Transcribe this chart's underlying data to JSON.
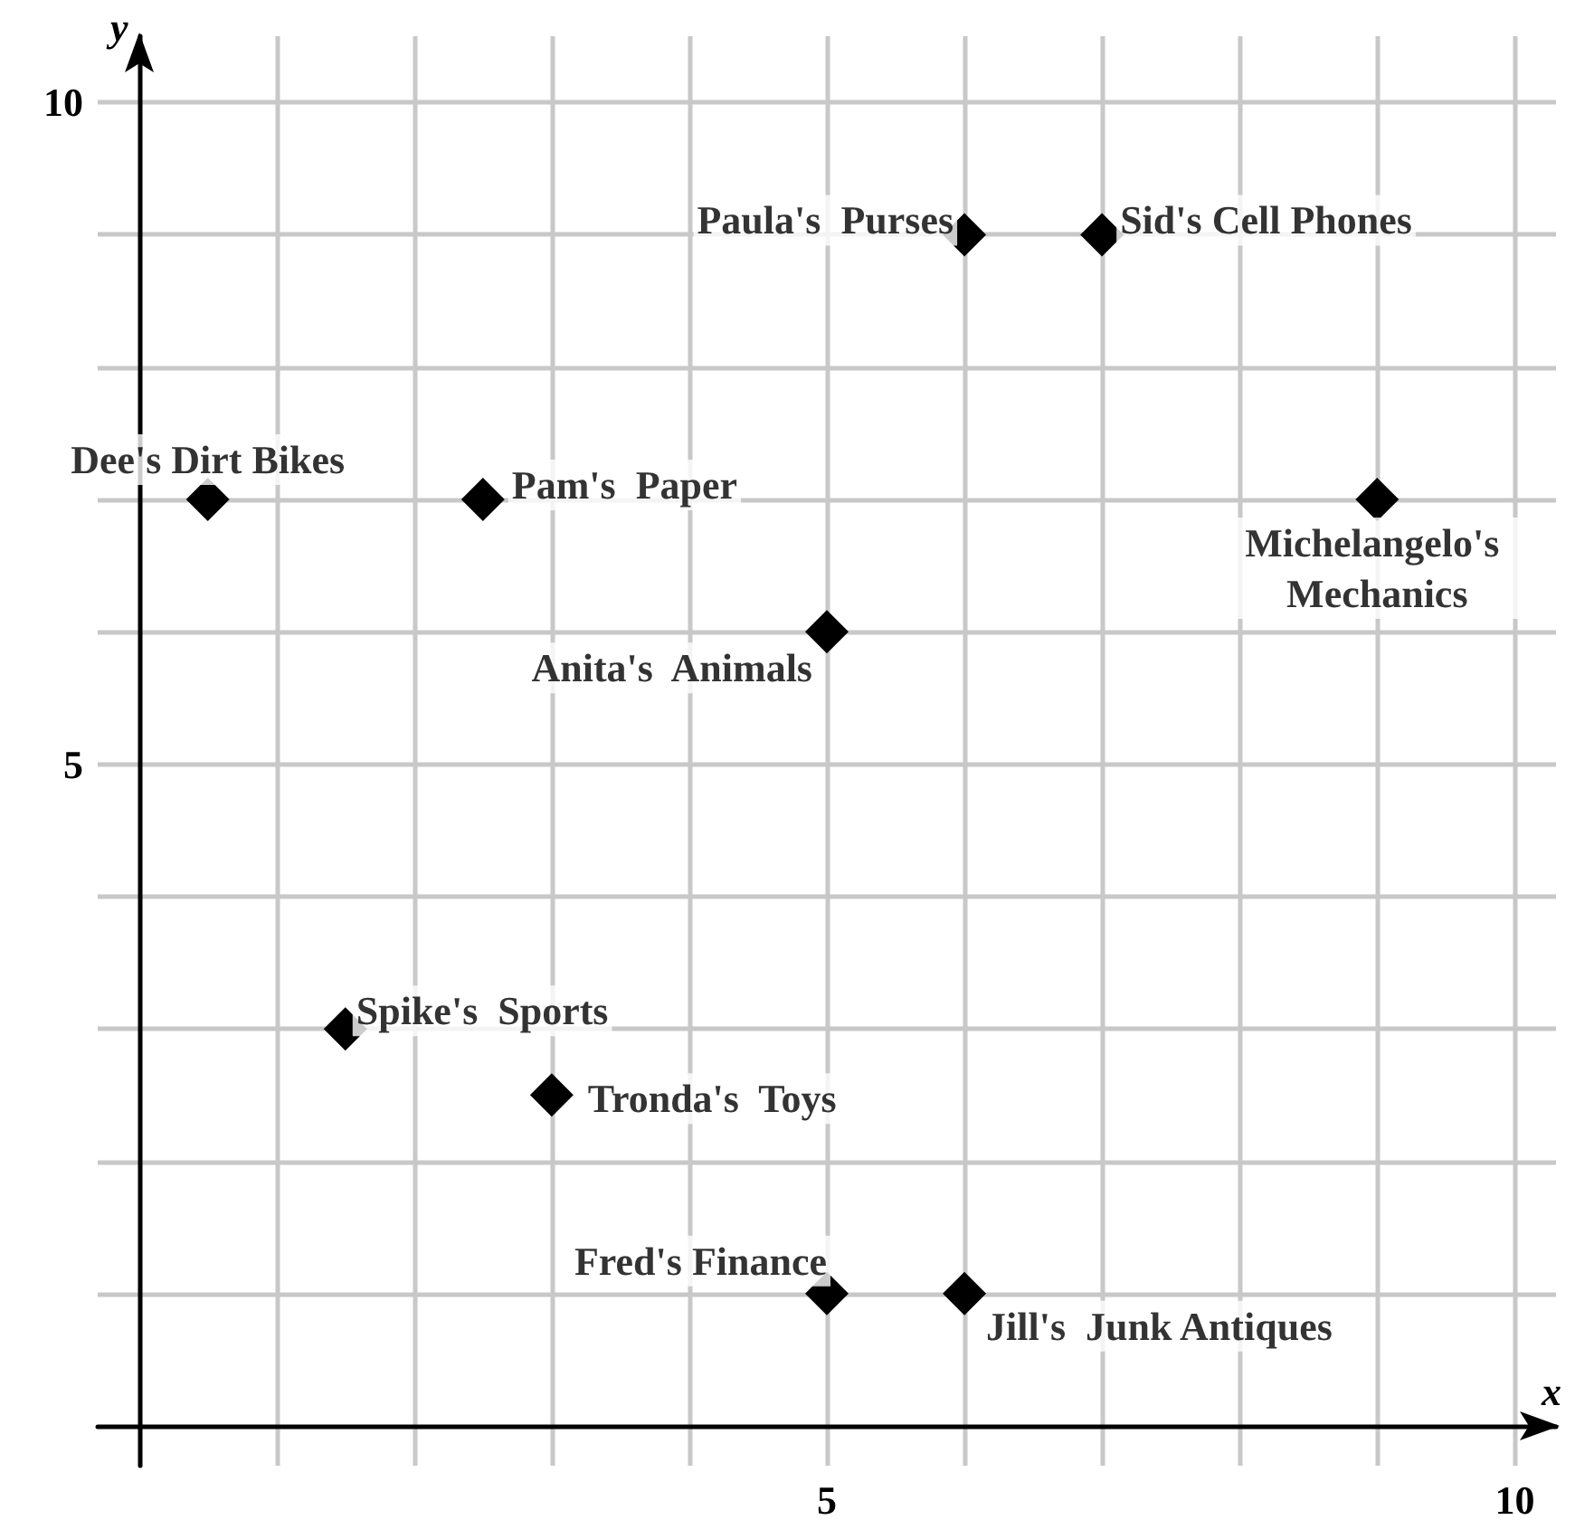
{
  "chart_data": {
    "type": "scatter",
    "xlabel": "x",
    "ylabel": "y",
    "x": [
      0.5,
      2.5,
      6,
      7,
      9,
      5,
      1.5,
      3,
      5,
      6
    ],
    "series": [
      {
        "color": "#000000",
        "values": [
          7,
          7,
          9,
          9,
          7,
          6,
          3,
          2.5,
          1,
          1
        ]
      }
    ],
    "marker": "diamond",
    "grid": true,
    "xlim": [
      -0.3,
      10.3
    ],
    "ylim": [
      -0.3,
      10.5
    ],
    "xticks": [
      {
        "value": 1,
        "label": null
      },
      {
        "value": 2,
        "label": null
      },
      {
        "value": 3,
        "label": null
      },
      {
        "value": 4,
        "label": null
      },
      5,
      {
        "value": 6,
        "label": null
      },
      {
        "value": 7,
        "label": null
      },
      {
        "value": 8,
        "label": null
      },
      {
        "value": 9,
        "label": null
      },
      10
    ],
    "yticks": [
      {
        "value": 1,
        "label": null
      },
      {
        "value": 2,
        "label": null
      },
      {
        "value": 3,
        "label": null
      },
      {
        "value": 4,
        "label": null
      },
      5,
      {
        "value": 6,
        "label": null
      },
      {
        "value": 7,
        "label": null
      },
      {
        "value": 8,
        "label": null
      },
      {
        "value": 9,
        "label": null
      },
      10
    ],
    "annotations": [
      {
        "text": "Dee's Dirt Bikes",
        "x": 0.5,
        "y": 7
      },
      {
        "text": "Pam's  Paper",
        "x": 2.5,
        "y": 7
      },
      {
        "text": "Paula's  Purses",
        "x": 6,
        "y": 9
      },
      {
        "text": "Sid's Cell Phones",
        "x": 7,
        "y": 9
      },
      {
        "text": "Michelangelo's Mechanics",
        "x": 9,
        "y": 7
      },
      {
        "text": "Anita's  Animals",
        "x": 5,
        "y": 6
      },
      {
        "text": "Spike's  Sports",
        "x": 1.5,
        "y": 3
      },
      {
        "text": "Tronda's  Toys",
        "x": 3,
        "y": 2.5
      },
      {
        "text": "Fred's Finance",
        "x": 5,
        "y": 1
      },
      {
        "text": "Jill's  Junk Antiques",
        "x": 6,
        "y": 1
      }
    ]
  }
}
